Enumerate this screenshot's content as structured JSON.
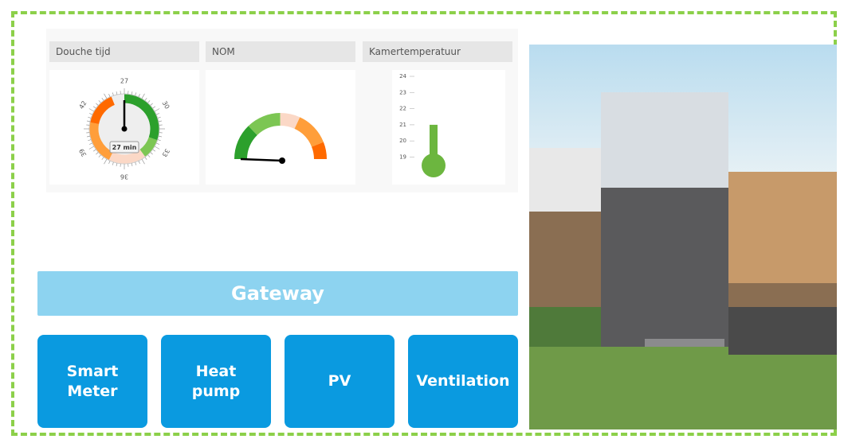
{
  "widgets": [
    {
      "title": "Douche tijd",
      "gauge": {
        "value": 27,
        "value_label": "27 min",
        "ticks": [
          27,
          30,
          33,
          36,
          39,
          42
        ],
        "range": [
          27,
          45
        ]
      }
    },
    {
      "title": "NOM"
    },
    {
      "title": "Kamertemperatuur",
      "thermometer": {
        "value": 21,
        "ticks": [
          24,
          23,
          22,
          21,
          20,
          19
        ]
      }
    }
  ],
  "gateway": "Gateway",
  "devices": [
    "Smart Meter",
    "Heat pump",
    "PV",
    "Ventilation"
  ]
}
